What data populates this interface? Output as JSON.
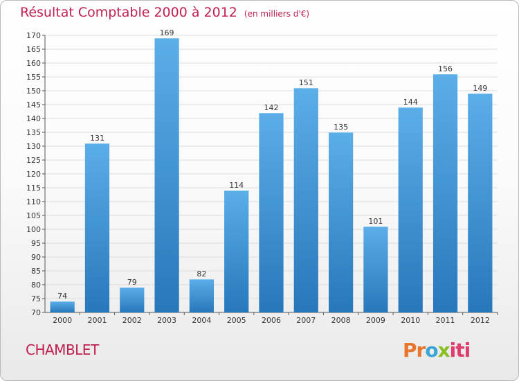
{
  "title": "Résultat Comptable 2000 à 2012",
  "unit_note": "(en milliers d'€)",
  "town": "CHAMBLET",
  "logo": {
    "part1": "Pr",
    "part2": "o",
    "part3": "x",
    "part4": "iti"
  },
  "colors": {
    "bar_top": "#5baee8",
    "bar_bottom": "#2778bb",
    "title": "#c0204f",
    "grid": "#dcdcdc"
  },
  "chart_data": {
    "type": "bar",
    "title": "Résultat Comptable 2000 à 2012",
    "xlabel": "",
    "ylabel": "",
    "categories": [
      "2000",
      "2001",
      "2002",
      "2003",
      "2004",
      "2005",
      "2006",
      "2007",
      "2008",
      "2009",
      "2010",
      "2011",
      "2012"
    ],
    "values": [
      74,
      131,
      79,
      169,
      82,
      114,
      142,
      151,
      135,
      101,
      144,
      156,
      149
    ],
    "ylim": [
      70,
      170
    ],
    "ytick_step": 5,
    "grid": true,
    "data_labels": true
  }
}
